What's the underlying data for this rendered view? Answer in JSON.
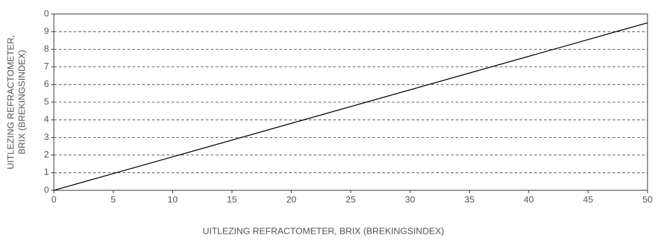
{
  "chart_data": {
    "type": "line",
    "xlabel": "UITLEZING REFRACTOMETER, BRIX (BREKINGSINDEX)",
    "ylabel": [
      "UITLEZING REFRACTOMETER,",
      "BRIX (BREKINGSINDEX)"
    ],
    "x": [
      0,
      50
    ],
    "series": [
      {
        "color": "#000000",
        "values": [
          0,
          9.5
        ]
      }
    ],
    "xlim": [
      0,
      50
    ],
    "xticks": [
      0,
      5,
      10,
      15,
      20,
      25,
      30,
      35,
      40,
      45,
      50
    ],
    "ylim": [
      0,
      10
    ],
    "yticks": [
      0,
      1,
      2,
      3,
      4,
      5,
      6,
      7,
      8,
      9,
      {
        "value": 10,
        "label": "0"
      }
    ],
    "grid": true
  }
}
